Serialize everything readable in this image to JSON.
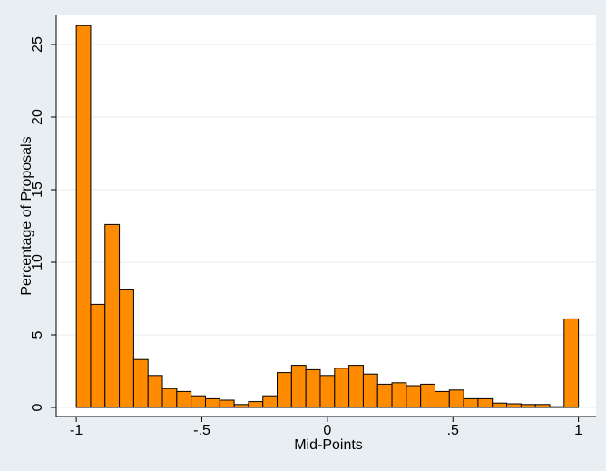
{
  "chart_data": {
    "type": "histogram",
    "xlabel": "Mid-Points",
    "ylabel": "Percentage of Proposals",
    "bins": [
      -1,
      -0.9429,
      -0.8857,
      -0.8286,
      -0.7714,
      -0.7143,
      -0.6571,
      -0.6,
      -0.5429,
      -0.4857,
      -0.4286,
      -0.3714,
      -0.3143,
      -0.2571,
      -0.2,
      -0.1429,
      -0.0857,
      -0.0286,
      0.0286,
      0.0857,
      0.1429,
      0.2,
      0.2571,
      0.3143,
      0.3714,
      0.4286,
      0.4857,
      0.5429,
      0.6,
      0.6571,
      0.7143,
      0.7714,
      0.8286,
      0.8857,
      0.9429,
      1
    ],
    "counts": [
      26.3,
      7.1,
      12.6,
      8.1,
      3.3,
      2.2,
      1.3,
      1.1,
      0.8,
      0.6,
      0.5,
      0.2,
      0.4,
      0.8,
      2.4,
      2.9,
      2.6,
      2.2,
      2.7,
      2.9,
      2.3,
      1.6,
      1.7,
      1.5,
      1.6,
      1.1,
      1.2,
      0.6,
      0.6,
      0.3,
      0.25,
      0.2,
      0.2,
      0.05,
      6.1
    ],
    "color": "#ff8c00",
    "xlim": [
      -1.08,
      1.07
    ],
    "ylim": [
      0,
      27
    ],
    "xticks": [
      -1,
      {
        "value": -0.5,
        "label": "-.5"
      },
      0,
      {
        "value": 0.5,
        "label": ".5"
      },
      1
    ],
    "yticks": [
      0,
      5,
      10,
      15,
      20,
      25
    ],
    "grid": true
  }
}
